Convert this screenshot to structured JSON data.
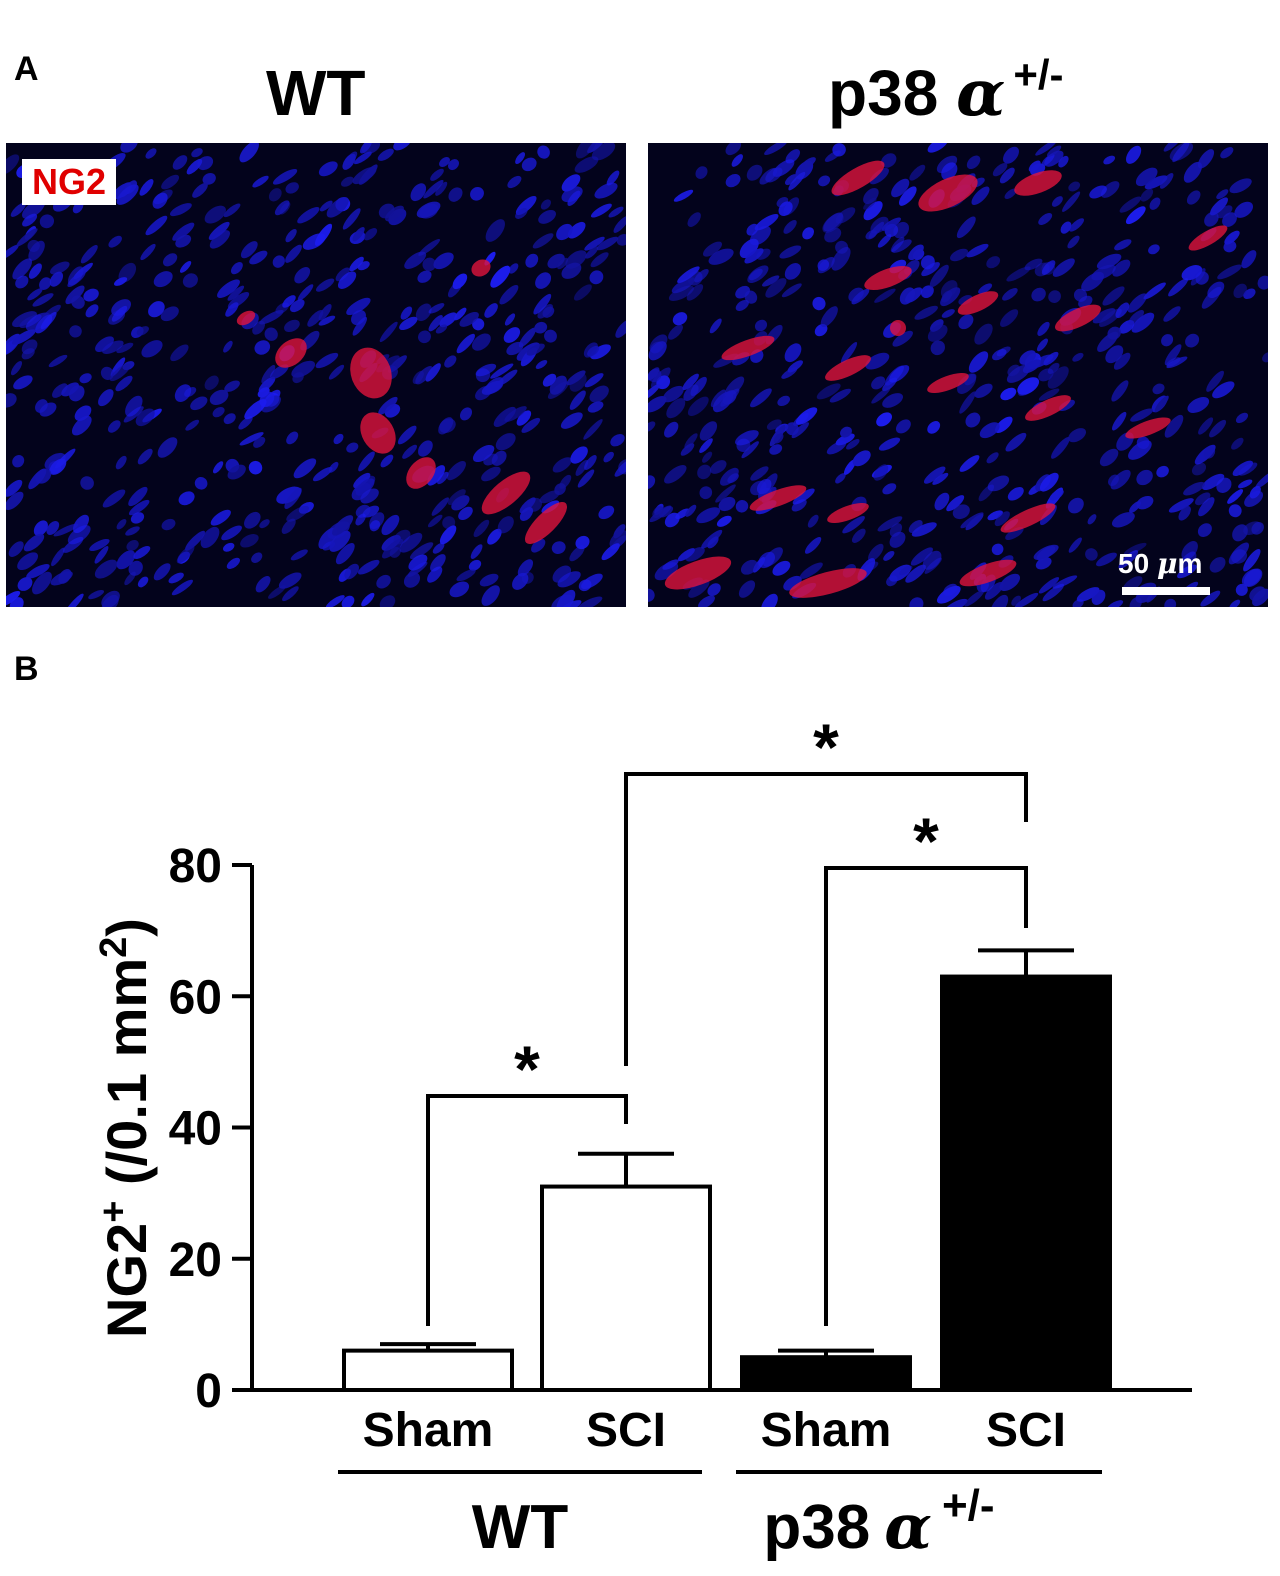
{
  "panel_a": {
    "letter": "A",
    "left": {
      "title": "WT",
      "tag": "NG2"
    },
    "right": {
      "title": "p38",
      "greek": "α",
      "superscript": "+/-"
    },
    "scale_bar": {
      "value": "50",
      "unit": "μm",
      "unit_prefix": "μ",
      "unit_suffix": "m"
    }
  },
  "panel_b": {
    "letter": "B"
  },
  "colors": {
    "nuclei": "#1b1bd6",
    "ng2": "#e4143c",
    "wt_bar": "#ffffff",
    "p38_bar": "#000000"
  },
  "chart_data": {
    "type": "bar",
    "ylabel": "NG2+ (/0.1 mm2)",
    "ylabel_parts": {
      "main": "NG2",
      "sup1": "+",
      "middle": " (/0.1 mm",
      "sup2": "2",
      "end": ")"
    },
    "ylim": [
      0,
      80
    ],
    "yticks": [
      "0",
      "20",
      "40",
      "60",
      "80"
    ],
    "categories": [
      "Sham",
      "SCI",
      "Sham",
      "SCI"
    ],
    "groups": [
      {
        "name": "WT",
        "greek": "",
        "superscript": ""
      },
      {
        "name": "p38",
        "greek": "α",
        "superscript": "+/-"
      }
    ],
    "values": [
      6,
      31,
      5,
      63
    ],
    "errors": [
      1,
      5,
      1,
      4
    ],
    "bar_fill": [
      "#ffffff",
      "#ffffff",
      "#000000",
      "#000000"
    ],
    "significance": [
      {
        "from": 0,
        "to": 1,
        "label": "*"
      },
      {
        "from": 2,
        "to": 3,
        "label": "*"
      },
      {
        "from": 1,
        "to": 3,
        "label": "*"
      }
    ],
    "grid": false
  }
}
